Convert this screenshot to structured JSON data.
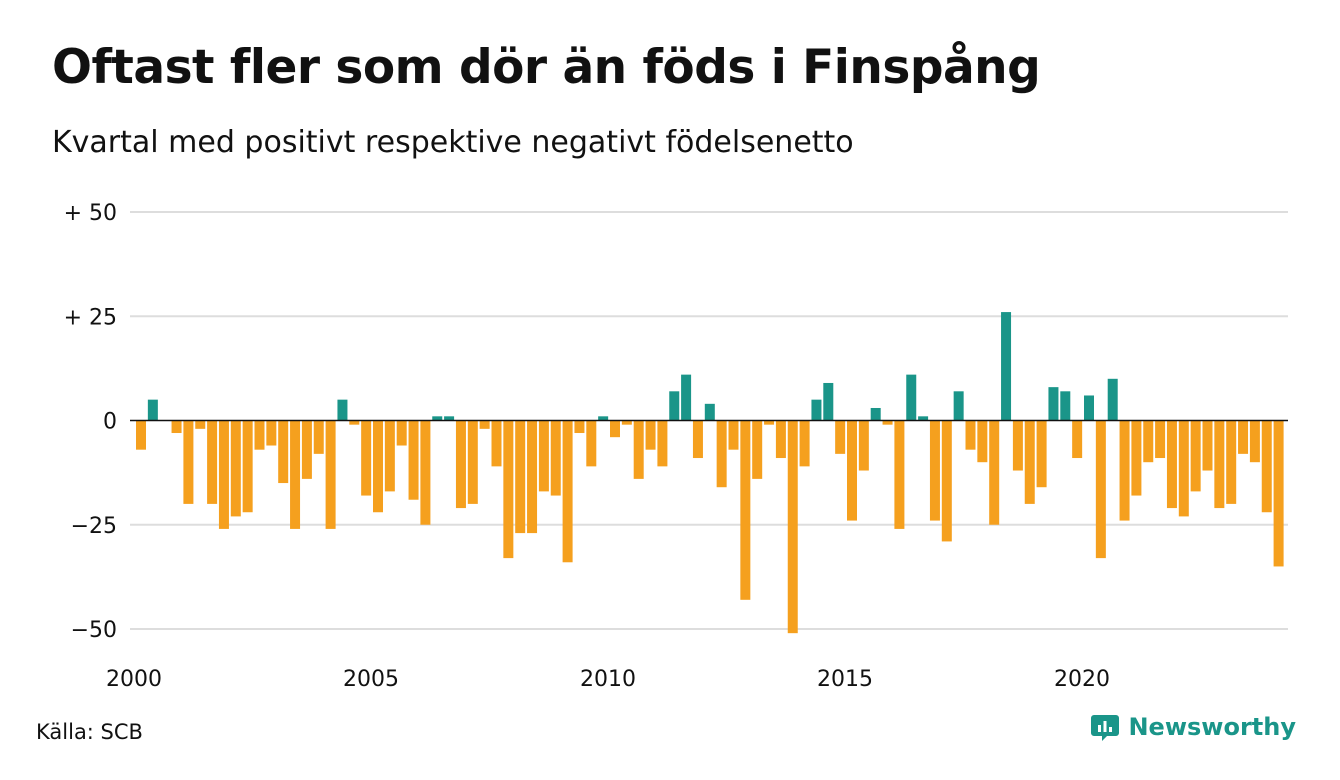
{
  "title": "Oftast fler som dör än föds i Finspång",
  "subtitle": "Kvartal med positivt respektive negativt födelsenetto",
  "source": "Källa: SCB",
  "brand": "Newsworthy",
  "colors": {
    "positive": "#1a9589",
    "negative": "#f5a01e",
    "grid": "#dddddd",
    "zero": "#111111"
  },
  "chart_data": {
    "type": "bar",
    "ylim": [
      -50,
      50
    ],
    "yticks": [
      50,
      25,
      0,
      -25,
      -50
    ],
    "ytick_labels": [
      "+ 50",
      "+ 25",
      "0",
      "−25",
      "−50"
    ],
    "xticks": [
      2000,
      2005,
      2010,
      2015,
      2020
    ],
    "x_start_year": 2000,
    "quarter_start": 1,
    "values": [
      -7,
      5,
      0,
      -3,
      -20,
      -2,
      -20,
      -26,
      -23,
      -22,
      -7,
      -6,
      -15,
      -26,
      -14,
      -8,
      -26,
      5,
      -1,
      -18,
      -22,
      -17,
      -6,
      -19,
      -25,
      1,
      1,
      -21,
      -20,
      -2,
      -11,
      -33,
      -27,
      -27,
      -17,
      -18,
      -34,
      -3,
      -11,
      1,
      -4,
      -1,
      -14,
      -7,
      -11,
      7,
      11,
      -9,
      4,
      -16,
      -7,
      -43,
      -14,
      -1,
      -9,
      -51,
      -11,
      5,
      9,
      -8,
      -24,
      -12,
      3,
      -1,
      -26,
      11,
      1,
      -24,
      -29,
      7,
      -7,
      -10,
      -25,
      26,
      -12,
      -20,
      -16,
      8,
      7,
      -9,
      6,
      -33,
      10,
      -24,
      -18,
      -10,
      -9,
      -21,
      -23,
      -17,
      -12,
      -21,
      -20,
      -8,
      -10,
      -22,
      -35
    ]
  }
}
